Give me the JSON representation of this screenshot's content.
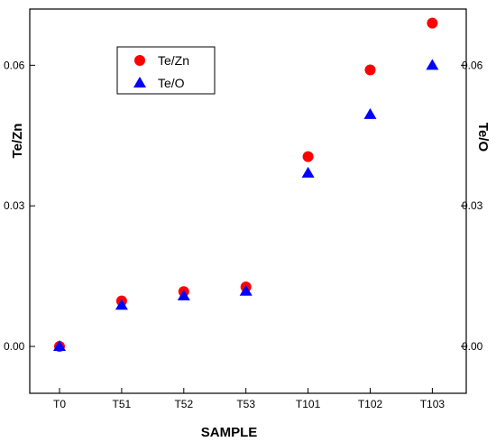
{
  "chart_data": {
    "type": "scatter",
    "title": "",
    "xlabel": "SAMPLE",
    "ylabel_left": "Te/Zn",
    "ylabel_right": "Te/O",
    "categories": [
      "T0",
      "T51",
      "T52",
      "T53",
      "T101",
      "T102",
      "T103"
    ],
    "ylim": [
      -0.01,
      0.072
    ],
    "yticks": [
      "0.00",
      "0.03",
      "0.06"
    ],
    "ytick_values": [
      0.0,
      0.03,
      0.06
    ],
    "grid": false,
    "legend_position": "top-left",
    "series": [
      {
        "name": "Te/Zn",
        "marker": "circle",
        "color": "#ff0000",
        "values": [
          0.0,
          0.0097,
          0.0117,
          0.0127,
          0.0405,
          0.059,
          0.069
        ]
      },
      {
        "name": "Te/O",
        "marker": "triangle",
        "color": "#0000ff",
        "values": [
          0.0,
          0.0088,
          0.0108,
          0.0118,
          0.037,
          0.0495,
          0.06
        ]
      }
    ]
  }
}
